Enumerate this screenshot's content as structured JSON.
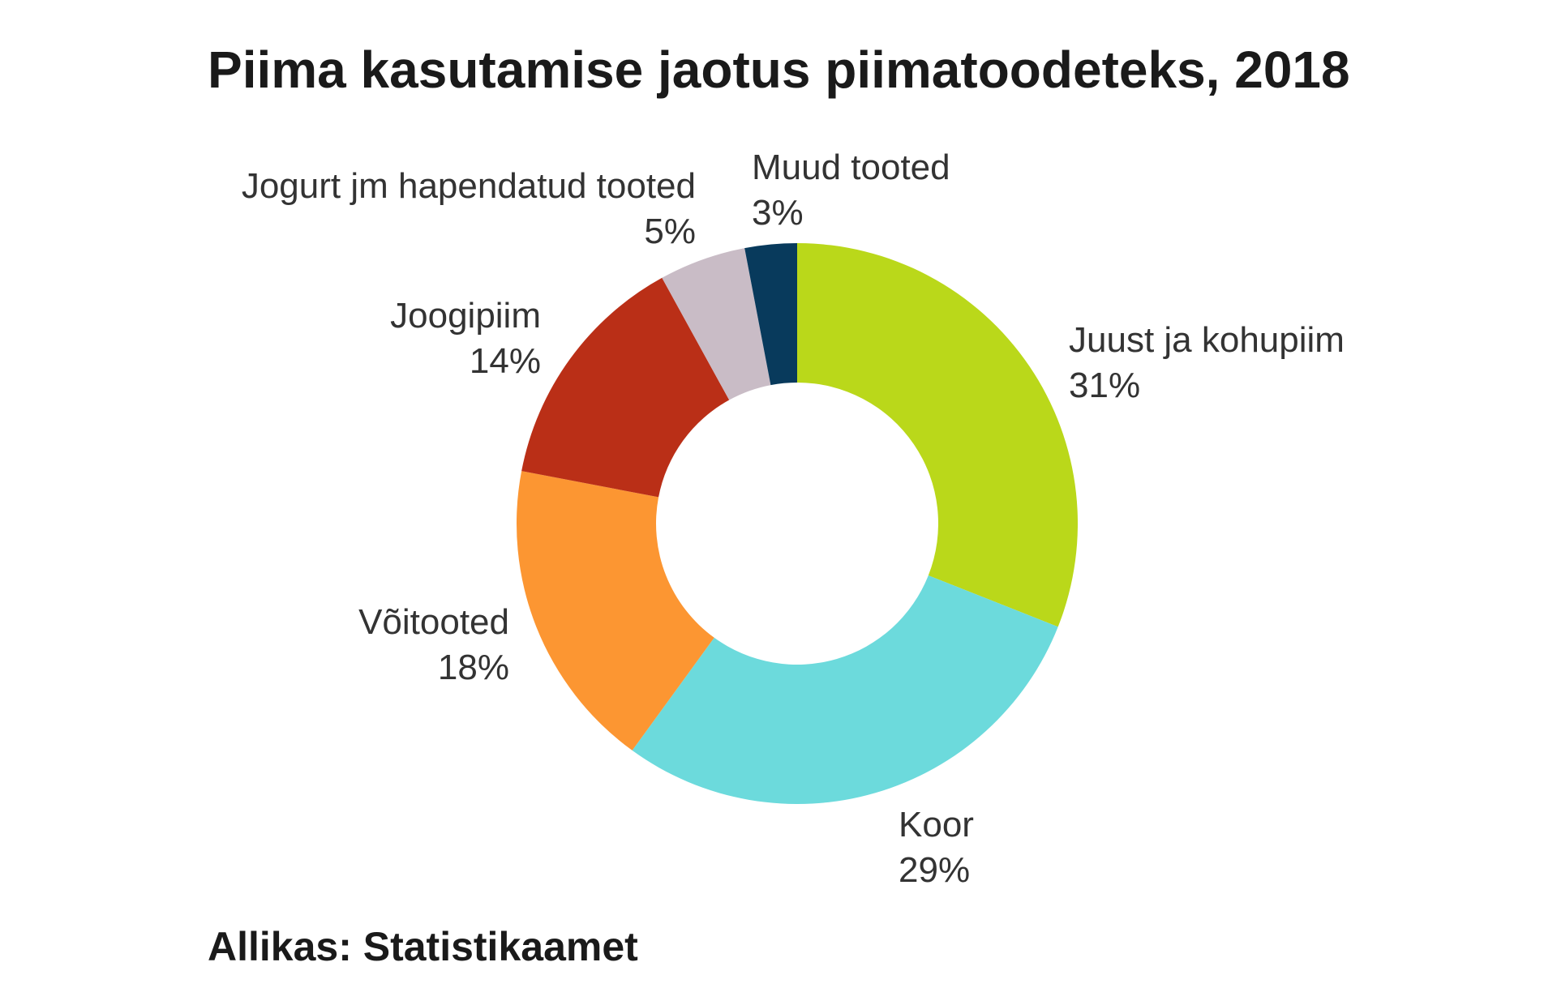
{
  "chart": {
    "title": "Piima kasutamise jaotus piimatoodeteks, 2018",
    "source": "Allikas: Statistikaamet"
  },
  "labels": [
    {
      "name": "Juust ja kohupiim",
      "value": "31%"
    },
    {
      "name": "Koor",
      "value": "29%"
    },
    {
      "name": "Võitooted",
      "value": "18%"
    },
    {
      "name": "Joogipiim",
      "value": "14%"
    },
    {
      "name": "Jogurt jm hapendatud tooted",
      "value": "5%"
    },
    {
      "name": "Muud tooted",
      "value": "3%"
    }
  ],
  "chart_data": {
    "type": "pie",
    "variant": "donut",
    "title": "Piima kasutamise jaotus piimatoodeteks, 2018",
    "source": "Allikas: Statistikaamet",
    "unit": "%",
    "categories": [
      "Juust ja kohupiim",
      "Koor",
      "Võitooted",
      "Joogipiim",
      "Jogurt jm hapendatud tooted",
      "Muud tooted"
    ],
    "values": [
      31,
      29,
      18,
      14,
      5,
      3
    ],
    "colors": [
      "#BAD81A",
      "#6CDADC",
      "#FC9632",
      "#BA2F17",
      "#C9BCC6",
      "#083A5C"
    ],
    "start_angle": "12 o'clock",
    "direction": "clockwise",
    "legend": "none (data labels outside slices)"
  }
}
